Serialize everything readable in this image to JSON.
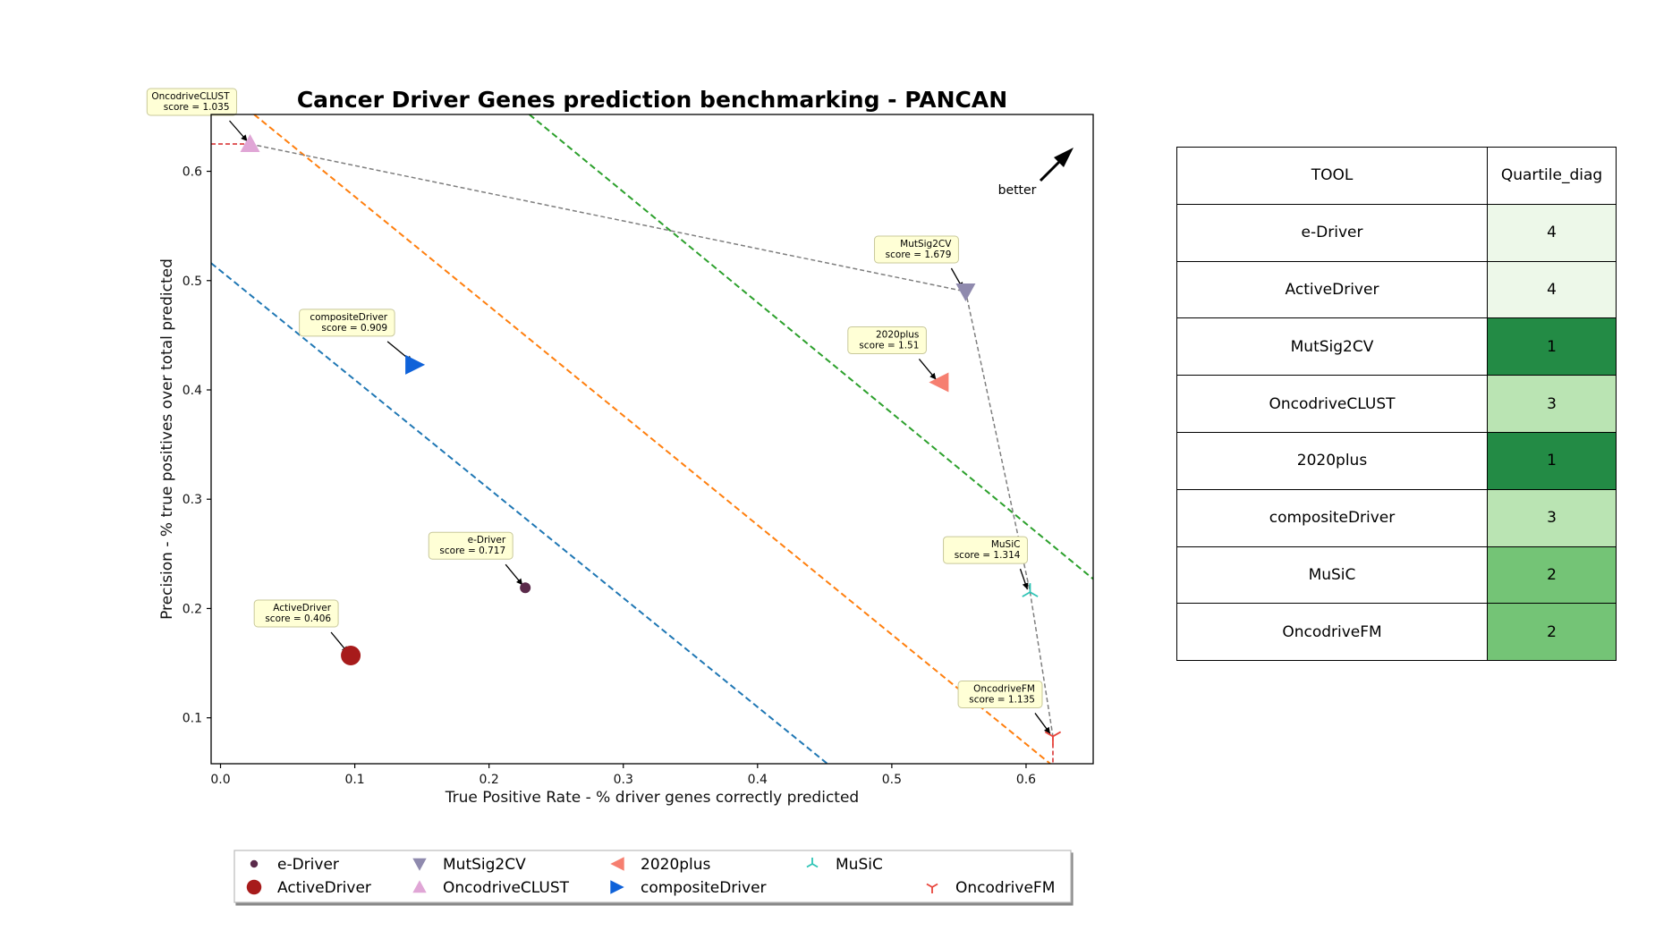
{
  "chart_data": {
    "type": "scatter",
    "title": "Cancer Driver Genes prediction benchmarking - PANCAN",
    "xlabel": "True Positive Rate - % driver genes correctly predicted",
    "ylabel": "Precision - % true positives over total predicted",
    "xlim": [
      -0.007,
      0.65
    ],
    "ylim": [
      0.058,
      0.652
    ],
    "xticks": [
      0.0,
      0.1,
      0.2,
      0.3,
      0.4,
      0.5,
      0.6
    ],
    "xtick_labels": [
      "0.0",
      "0.1",
      "0.2",
      "0.3",
      "0.4",
      "0.5",
      "0.6"
    ],
    "yticks": [
      0.1,
      0.2,
      0.3,
      0.4,
      0.5,
      0.6
    ],
    "ytick_labels": [
      "0.1",
      "0.2",
      "0.3",
      "0.4",
      "0.5",
      "0.6"
    ],
    "grid": false,
    "legend_position": "bottom-center",
    "better_label": "better",
    "series": [
      {
        "name": "e-Driver",
        "x": 0.227,
        "y": 0.219,
        "score_label": "score = 0.717",
        "marker": "circle-small",
        "color": "#5a2a4a"
      },
      {
        "name": "ActiveDriver",
        "x": 0.097,
        "y": 0.157,
        "score_label": "score = 0.406",
        "marker": "circle-large",
        "color": "#a71b1b"
      },
      {
        "name": "MutSig2CV",
        "x": 0.555,
        "y": 0.49,
        "score_label": "score = 1.679",
        "marker": "triangle-down",
        "color": "#8f8aae"
      },
      {
        "name": "OncodriveCLUST",
        "x": 0.022,
        "y": 0.625,
        "score_label": "score = 1.035",
        "marker": "triangle-up",
        "color": "#e0a6d6"
      },
      {
        "name": "2020plus",
        "x": 0.535,
        "y": 0.407,
        "score_label": "score = 1.51",
        "marker": "triangle-left",
        "color": "#f67f70"
      },
      {
        "name": "compositeDriver",
        "x": 0.145,
        "y": 0.423,
        "score_label": "score = 0.909",
        "marker": "triangle-right",
        "color": "#0f62d9"
      },
      {
        "name": "MuSiC",
        "x": 0.603,
        "y": 0.215,
        "score_label": "score = 1.314",
        "marker": "tri-down",
        "color": "#2ec4b6"
      },
      {
        "name": "OncodriveFM",
        "x": 0.62,
        "y": 0.083,
        "score_label": "score = 1.135",
        "marker": "tri-up",
        "color": "#e8453c"
      }
    ],
    "pareto_frontier": [
      [
        0.022,
        0.625
      ],
      [
        0.555,
        0.49
      ],
      [
        0.603,
        0.215
      ],
      [
        0.62,
        0.083
      ]
    ],
    "diagonal_lines": [
      {
        "color": "#1f77b4",
        "points": [
          [
            -0.007,
            0.516
          ],
          [
            0.452,
            0.058
          ]
        ]
      },
      {
        "color": "#ff7f0e",
        "points": [
          [
            0.025,
            0.652
          ],
          [
            0.618,
            0.058
          ]
        ]
      },
      {
        "color": "#2ca02c",
        "points": [
          [
            0.23,
            0.652
          ],
          [
            0.65,
            0.227
          ]
        ]
      }
    ]
  },
  "table": {
    "headers": [
      "TOOL",
      "Quartile_diag"
    ],
    "rows": [
      {
        "tool": "e-Driver",
        "quartile": "4",
        "color": "#edf8e9"
      },
      {
        "tool": "ActiveDriver",
        "quartile": "4",
        "color": "#edf8e9"
      },
      {
        "tool": "MutSig2CV",
        "quartile": "1",
        "color": "#238b45"
      },
      {
        "tool": "OncodriveCLUST",
        "quartile": "3",
        "color": "#bae4b3"
      },
      {
        "tool": "2020plus",
        "quartile": "1",
        "color": "#238b45"
      },
      {
        "tool": "compositeDriver",
        "quartile": "3",
        "color": "#bae4b3"
      },
      {
        "tool": "MuSiC",
        "quartile": "2",
        "color": "#74c476"
      },
      {
        "tool": "OncodriveFM",
        "quartile": "2",
        "color": "#74c476"
      }
    ]
  }
}
